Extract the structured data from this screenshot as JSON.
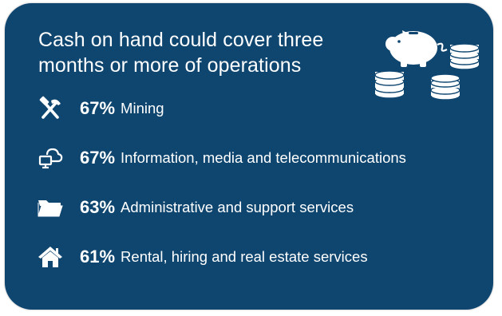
{
  "card": {
    "background_color": "#0f4670",
    "text_color": "#ffffff",
    "title": "Cash on hand could cover three months or more of operations",
    "illustration_icons": [
      "piggy-bank-icon",
      "coin-stack-icon"
    ]
  },
  "industries": [
    {
      "percent": "67%",
      "label": "Mining",
      "icon": "hammer-pickaxe-icon"
    },
    {
      "percent": "67%",
      "label": "Information, media and telecommunications",
      "icon": "cloud-computer-icon"
    },
    {
      "percent": "63%",
      "label": "Administrative and support services",
      "icon": "folder-icon"
    },
    {
      "percent": "61%",
      "label": "Rental, hiring and real estate services",
      "icon": "house-icon"
    }
  ]
}
